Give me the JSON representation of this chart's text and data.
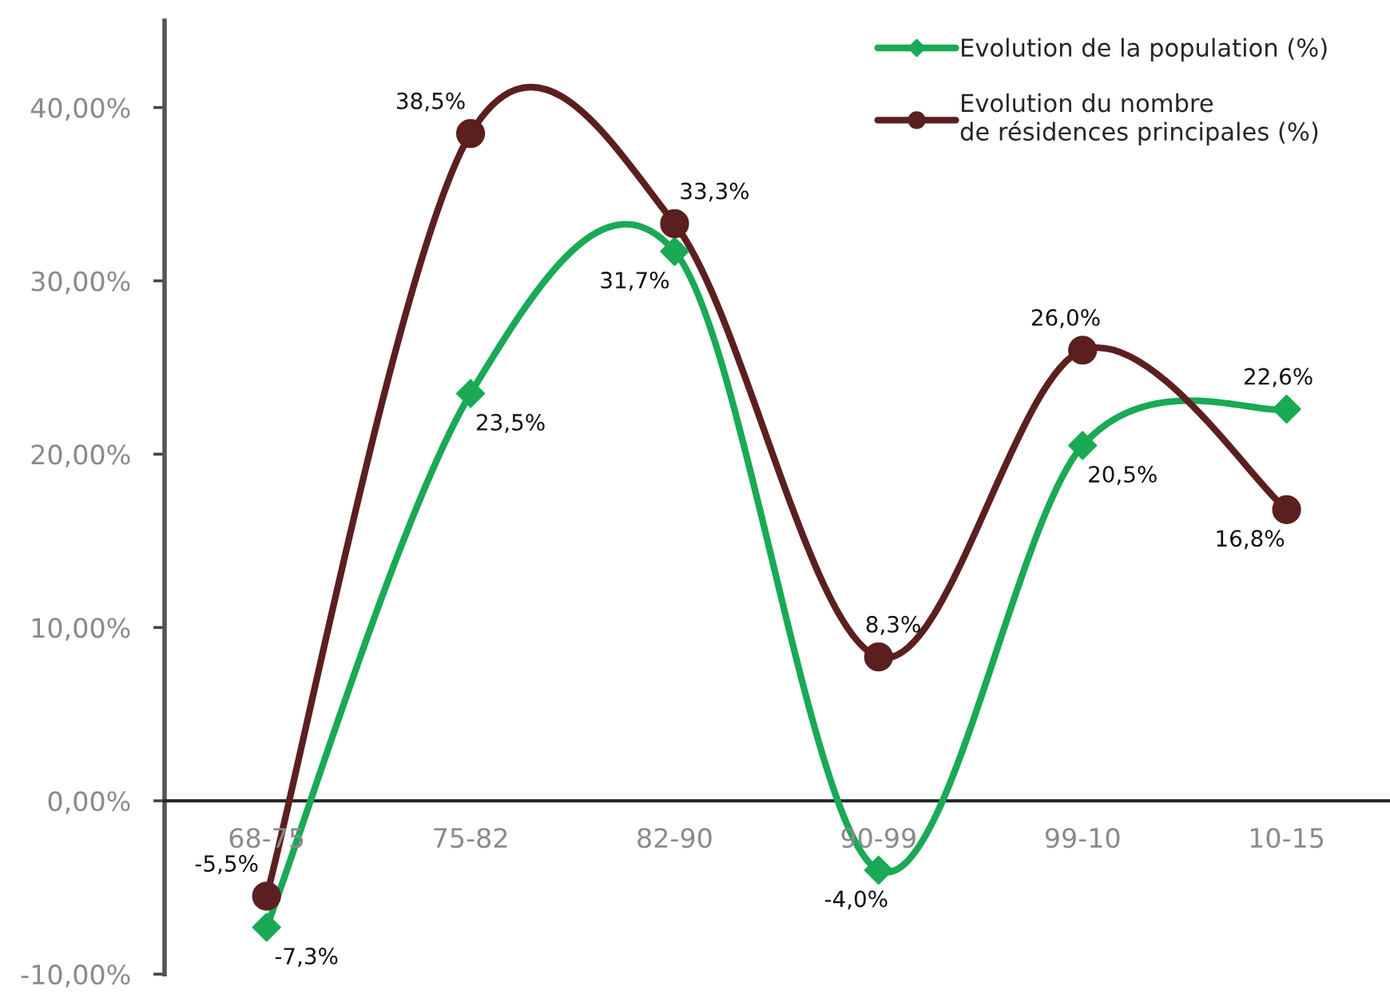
{
  "chart_data": {
    "type": "line",
    "categories": [
      "68-75",
      "75-82",
      "82-90",
      "90-99",
      "99-10",
      "10-15"
    ],
    "series": [
      {
        "name": "Evolution de la population (%)",
        "color": "#1aa955",
        "marker": "diamond",
        "values": [
          -7.3,
          23.5,
          31.7,
          -4.0,
          20.5,
          22.6
        ],
        "value_labels": [
          "-7,3%",
          "23,5%",
          "31,7%",
          "-4,0%",
          "20,5%",
          "22,6%"
        ]
      },
      {
        "name": "Evolution du nombre\nde résidences principales (%)",
        "color": "#5c1f1f",
        "marker": "circle",
        "values": [
          -5.5,
          38.5,
          33.3,
          8.3,
          26.0,
          16.8
        ],
        "value_labels": [
          "-5,5%",
          "38,5%",
          "33,3%",
          "8,3%",
          "26,0%",
          "16,8%"
        ]
      }
    ],
    "ylim": [
      -10,
      45
    ],
    "yticks": [
      {
        "value": -10,
        "label": "-10,00%"
      },
      {
        "value": 0,
        "label": "0,00%"
      },
      {
        "value": 10,
        "label": "10,00%"
      },
      {
        "value": 20,
        "label": "20,00%"
      },
      {
        "value": 30,
        "label": "30,00%"
      },
      {
        "value": 40,
        "label": "40,00%"
      }
    ],
    "grid": false,
    "legend": "top right"
  }
}
